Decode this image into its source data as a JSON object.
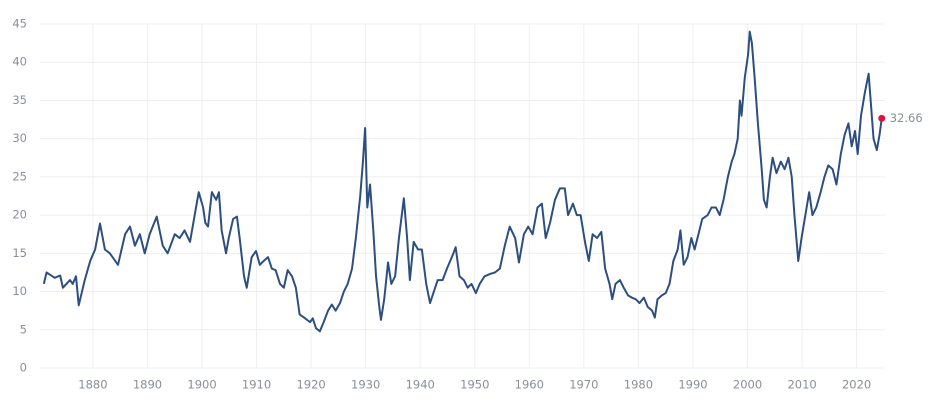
{
  "chart_data": {
    "type": "line",
    "color": "#2d4f80",
    "marker_color": "#e0103c",
    "grid": true,
    "xlim": [
      1870.3,
      2025.2
    ],
    "xticks": [
      1880,
      1890,
      1900,
      1910,
      1920,
      1930,
      1940,
      1950,
      1960,
      1970,
      1980,
      1990,
      2000,
      2010,
      2020
    ],
    "ylim": [
      0,
      45
    ],
    "yticks": [
      0,
      5,
      10,
      15,
      20,
      25,
      30,
      35,
      40,
      45
    ],
    "x": [
      1871.0,
      1871.5,
      1873.0,
      1874.0,
      1874.5,
      1875.8,
      1876.3,
      1876.9,
      1877.4,
      1878.5,
      1879.5,
      1880.4,
      1881.3,
      1882.2,
      1883.1,
      1884.6,
      1885.9,
      1886.8,
      1887.7,
      1888.6,
      1889.5,
      1890.4,
      1891.7,
      1892.8,
      1893.7,
      1895.0,
      1895.9,
      1896.8,
      1897.8,
      1898.9,
      1899.4,
      1900.2,
      1900.6,
      1901.1,
      1901.8,
      1902.6,
      1903.1,
      1903.6,
      1904.4,
      1904.9,
      1905.7,
      1906.4,
      1906.9,
      1907.7,
      1908.2,
      1909.1,
      1909.9,
      1910.6,
      1911.3,
      1912.1,
      1912.8,
      1913.5,
      1914.3,
      1915.0,
      1915.7,
      1916.5,
      1917.2,
      1917.9,
      1918.7,
      1919.8,
      1920.3,
      1920.9,
      1921.6,
      1922.3,
      1923.1,
      1923.8,
      1924.5,
      1925.3,
      1926.0,
      1926.7,
      1927.5,
      1928.2,
      1929.0,
      1929.5,
      1929.9,
      1930.3,
      1930.8,
      1931.4,
      1931.9,
      1932.5,
      1932.8,
      1933.4,
      1934.1,
      1934.7,
      1935.4,
      1936.1,
      1937.0,
      1937.6,
      1938.1,
      1938.8,
      1939.6,
      1940.3,
      1941.1,
      1941.8,
      1942.5,
      1943.2,
      1944.1,
      1944.9,
      1945.8,
      1946.5,
      1947.2,
      1948.0,
      1948.7,
      1949.4,
      1950.2,
      1950.9,
      1951.8,
      1952.8,
      1953.7,
      1954.6,
      1955.5,
      1956.4,
      1957.4,
      1958.1,
      1959.0,
      1959.8,
      1960.6,
      1961.5,
      1962.3,
      1963.0,
      1963.8,
      1964.7,
      1965.6,
      1966.5,
      1967.1,
      1968.0,
      1968.7,
      1969.4,
      1970.2,
      1970.9,
      1971.6,
      1972.4,
      1973.2,
      1973.9,
      1974.7,
      1975.2,
      1975.8,
      1976.6,
      1977.3,
      1978.1,
      1978.8,
      1979.5,
      1980.2,
      1981.0,
      1981.7,
      1982.5,
      1983.0,
      1983.5,
      1984.3,
      1985.0,
      1985.7,
      1986.4,
      1987.2,
      1987.7,
      1988.3,
      1989.0,
      1989.7,
      1990.3,
      1991.0,
      1991.7,
      1992.7,
      1993.4,
      1994.2,
      1994.9,
      1995.6,
      1996.4,
      1997.1,
      1997.6,
      1998.2,
      1998.6,
      1998.9,
      1999.5,
      2000.1,
      2000.4,
      2000.8,
      2001.3,
      2001.9,
      2002.6,
      2003.0,
      2003.5,
      2004.1,
      2004.6,
      2005.3,
      2006.1,
      2006.8,
      2007.5,
      2008.1,
      2008.6,
      2009.3,
      2009.9,
      2010.6,
      2011.3,
      2011.9,
      2012.6,
      2013.4,
      2014.1,
      2014.8,
      2015.6,
      2016.3,
      2017.1,
      2017.8,
      2018.5,
      2019.1,
      2019.7,
      2020.2,
      2020.8,
      2021.5,
      2022.2,
      2023.1,
      2023.7,
      2024.2,
      2024.6
    ],
    "values": [
      11.0,
      12.5,
      11.8,
      12.1,
      10.5,
      11.5,
      11.0,
      12.0,
      8.2,
      11.5,
      14.0,
      15.5,
      18.9,
      15.5,
      15.0,
      13.5,
      17.5,
      18.5,
      16.0,
      17.5,
      15.0,
      17.5,
      19.8,
      16.0,
      15.0,
      17.5,
      17.0,
      18.0,
      16.5,
      21.0,
      23.0,
      21.0,
      19.0,
      18.5,
      23.0,
      22.0,
      23.0,
      18.0,
      15.0,
      17.0,
      19.5,
      19.8,
      17.0,
      12.0,
      10.5,
      14.5,
      15.3,
      13.5,
      14.0,
      14.5,
      13.0,
      12.8,
      11.0,
      10.5,
      12.8,
      12.0,
      10.5,
      7.0,
      6.6,
      6.0,
      6.5,
      5.2,
      4.8,
      6.0,
      7.5,
      8.3,
      7.5,
      8.5,
      10.0,
      11.0,
      13.0,
      17.0,
      22.5,
      27.0,
      31.4,
      21.0,
      24.0,
      18.0,
      12.0,
      8.0,
      6.3,
      9.0,
      13.8,
      11.0,
      12.0,
      17.0,
      22.2,
      17.0,
      11.5,
      16.5,
      15.5,
      15.5,
      11.0,
      8.5,
      10.0,
      11.5,
      11.5,
      13.0,
      14.5,
      15.8,
      12.0,
      11.5,
      10.5,
      11.0,
      9.8,
      11.0,
      12.0,
      12.3,
      12.5,
      13.0,
      16.0,
      18.5,
      17.0,
      13.8,
      17.5,
      18.5,
      17.5,
      21.0,
      21.5,
      17.0,
      19.0,
      22.0,
      23.5,
      23.5,
      20.0,
      21.5,
      20.0,
      20.0,
      16.5,
      14.0,
      17.5,
      17.0,
      17.8,
      13.0,
      11.0,
      9.0,
      11.0,
      11.5,
      10.5,
      9.5,
      9.2,
      9.0,
      8.5,
      9.2,
      8.0,
      7.5,
      6.6,
      9.0,
      9.5,
      9.8,
      11.0,
      14.0,
      15.5,
      18.0,
      13.5,
      14.5,
      17.0,
      15.5,
      17.5,
      19.5,
      20.0,
      21.0,
      21.0,
      20.0,
      22.0,
      25.0,
      27.0,
      28.0,
      30.0,
      35.0,
      33.0,
      38.0,
      41.0,
      44.0,
      42.5,
      38.0,
      32.0,
      26.0,
      22.0,
      21.0,
      25.0,
      27.5,
      25.5,
      27.0,
      26.0,
      27.5,
      25.0,
      20.0,
      14.0,
      17.0,
      20.0,
      23.0,
      20.0,
      21.0,
      23.0,
      25.0,
      26.5,
      26.0,
      24.0,
      28.0,
      30.5,
      32.0,
      29.0,
      31.0,
      28.0,
      33.0,
      36.0,
      38.5,
      30.0,
      28.5,
      30.5,
      32.66
    ]
  }
}
